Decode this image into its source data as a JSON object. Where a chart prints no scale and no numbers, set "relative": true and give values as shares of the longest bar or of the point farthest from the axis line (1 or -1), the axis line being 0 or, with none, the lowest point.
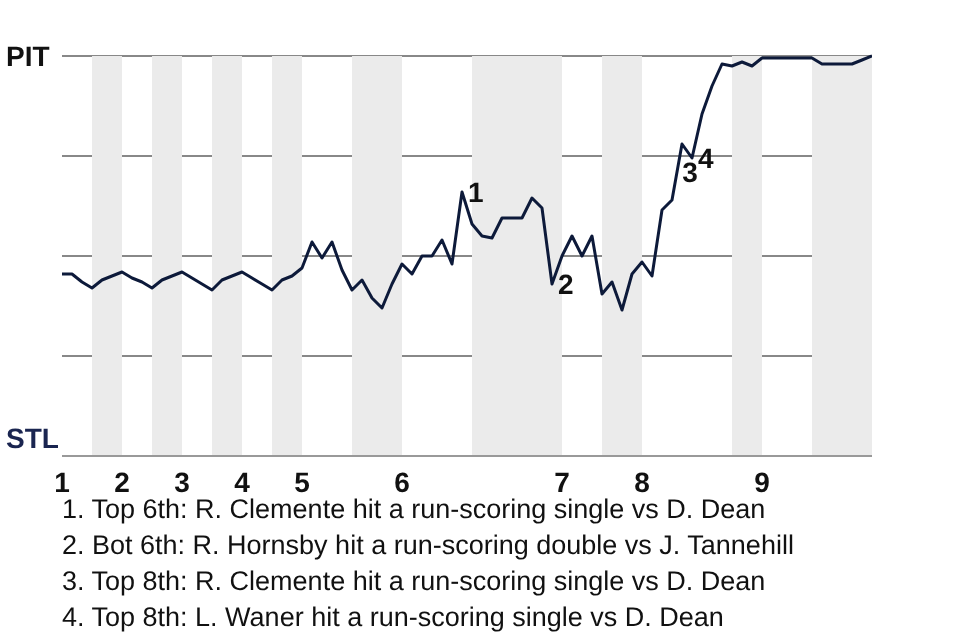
{
  "chart_data": {
    "type": "line",
    "relative": true,
    "categories": [
      "1",
      null,
      null,
      null,
      null,
      null,
      "2",
      null,
      null,
      null,
      null,
      null,
      "3",
      null,
      null,
      null,
      null,
      null,
      "4",
      null,
      null,
      null,
      null,
      null,
      "5",
      null,
      null,
      null,
      null,
      null,
      null,
      null,
      null,
      null,
      "6",
      null,
      null,
      null,
      null,
      null,
      null,
      null,
      null,
      null,
      null,
      null,
      null,
      null,
      null,
      null,
      "7",
      null,
      null,
      null,
      null,
      null,
      null,
      null,
      "8",
      null,
      null,
      null,
      null,
      null,
      null,
      null,
      null,
      null,
      null,
      null,
      "9",
      null,
      null,
      null,
      null,
      null,
      null,
      null,
      null,
      null,
      null,
      null
    ],
    "grid": "y",
    "series": [
      {
        "color": "#0d1a3a",
        "values": [
          0.455,
          0.455,
          0.435,
          0.42,
          0.44,
          0.45,
          0.46,
          0.445,
          0.435,
          0.42,
          0.44,
          0.45,
          0.46,
          0.445,
          0.43,
          0.415,
          0.44,
          0.45,
          0.46,
          0.445,
          0.43,
          0.415,
          0.44,
          0.45,
          0.47,
          0.535,
          0.495,
          0.535,
          0.465,
          0.415,
          0.44,
          0.395,
          0.37,
          0.43,
          0.48,
          0.455,
          0.5,
          0.5,
          0.54,
          0.48,
          0.66,
          0.58,
          0.55,
          0.545,
          0.595,
          0.595,
          0.595,
          0.645,
          0.62,
          0.43,
          0.5,
          0.55,
          0.5,
          0.55,
          0.405,
          0.435,
          0.365,
          0.455,
          0.485,
          0.45,
          0.615,
          0.64,
          0.78,
          0.745,
          0.855,
          0.925,
          0.98,
          0.975,
          0.985,
          0.975,
          0.995,
          0.995,
          0.995,
          0.995,
          0.995,
          0.995,
          0.98,
          0.98,
          0.98,
          0.98,
          0.99,
          1
        ],
        "name": null
      }
    ],
    "annotations": [
      "1",
      "2",
      "3",
      "4",
      "PIT",
      "STL",
      "1. Top 6th: R. Clemente hit a run-scoring single vs D. Dean",
      "2. Bot 6th: R. Hornsby hit a run-scoring double vs J. Tannehill",
      "3. Top 8th: R. Clemente hit a run-scoring single vs D. Dean",
      "4. Top 8th: L. Waner hit a run-scoring single vs D. Dean"
    ]
  }
}
